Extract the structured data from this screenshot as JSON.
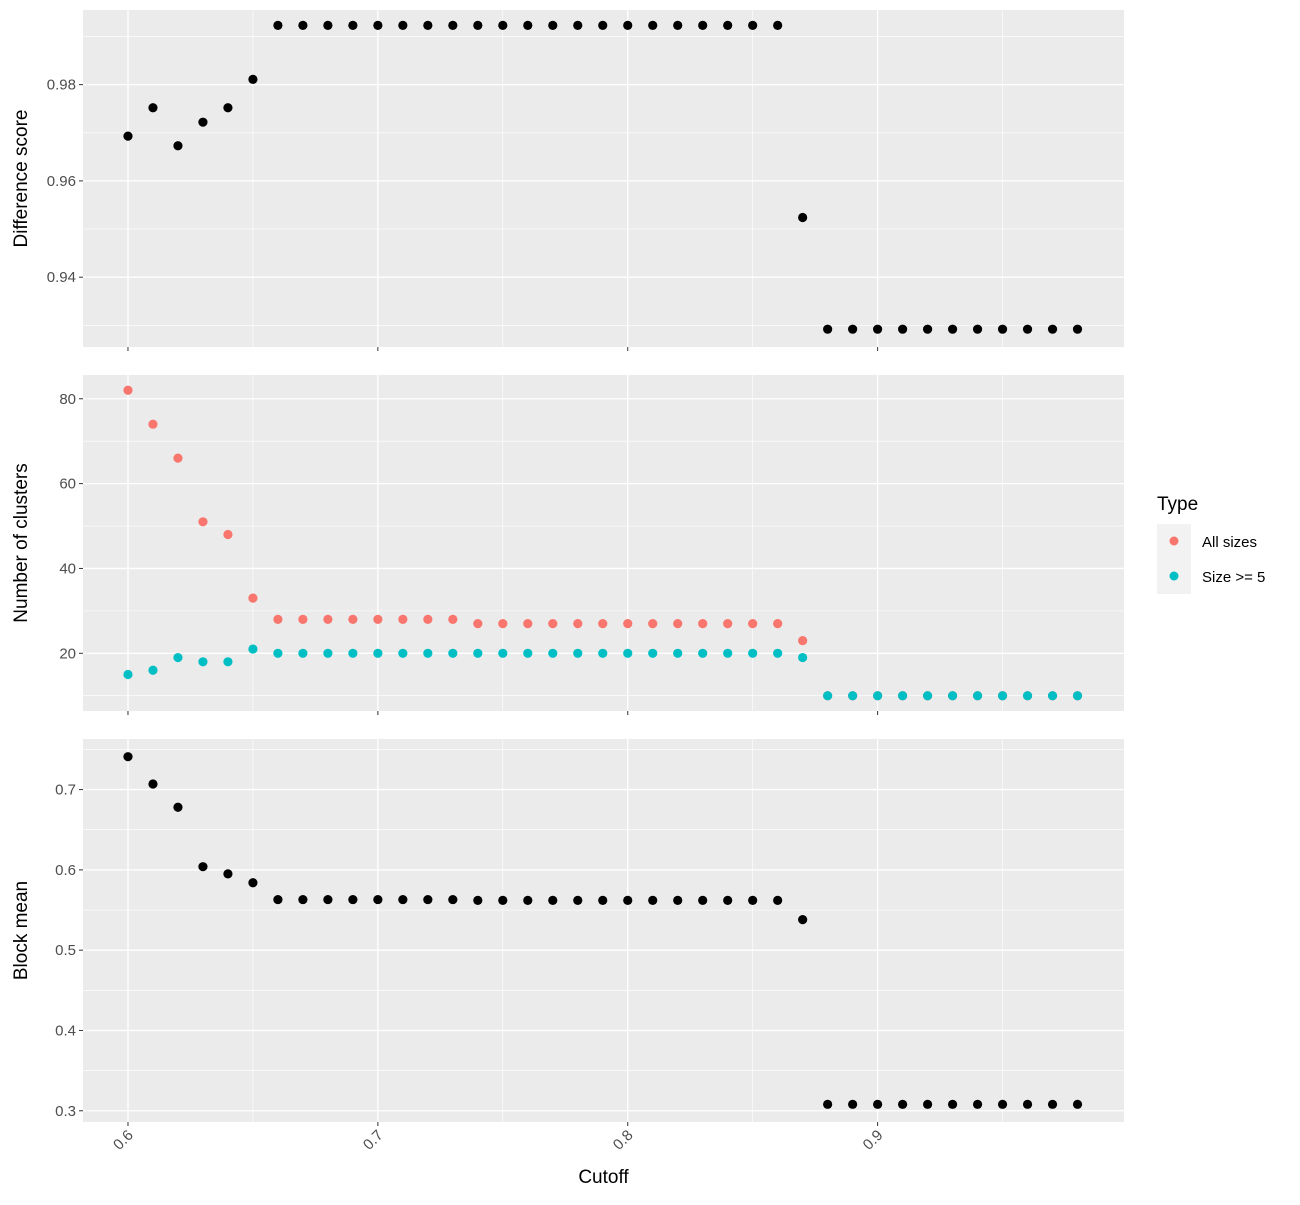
{
  "chart_data": [
    {
      "type": "scatter",
      "ylabel": "Difference score",
      "xlim": [
        0.582,
        0.9986
      ],
      "ylim": [
        0.9255,
        0.9955
      ],
      "x_ticks": [
        0.6,
        0.7,
        0.8,
        0.9
      ],
      "y_ticks": [
        0.94,
        0.96,
        0.98
      ],
      "grid": true,
      "show_x_tick_labels": false,
      "series": [
        {
          "color": "#000000",
          "points": [
            [
              0.6,
              0.9693
            ],
            [
              0.61,
              0.9752
            ],
            [
              0.62,
              0.9673
            ],
            [
              0.63,
              0.9722
            ],
            [
              0.64,
              0.9752
            ],
            [
              0.65,
              0.9811
            ],
            [
              0.66,
              0.9923
            ],
            [
              0.67,
              0.9923
            ],
            [
              0.68,
              0.9923
            ],
            [
              0.69,
              0.9923
            ],
            [
              0.7,
              0.9923
            ],
            [
              0.71,
              0.9923
            ],
            [
              0.72,
              0.9923
            ],
            [
              0.73,
              0.9923
            ],
            [
              0.74,
              0.9923
            ],
            [
              0.75,
              0.9923
            ],
            [
              0.76,
              0.9923
            ],
            [
              0.77,
              0.9923
            ],
            [
              0.78,
              0.9923
            ],
            [
              0.79,
              0.9923
            ],
            [
              0.8,
              0.9923
            ],
            [
              0.81,
              0.9923
            ],
            [
              0.82,
              0.9923
            ],
            [
              0.83,
              0.9923
            ],
            [
              0.84,
              0.9923
            ],
            [
              0.85,
              0.9923
            ],
            [
              0.86,
              0.9923
            ],
            [
              0.87,
              0.9524
            ],
            [
              0.88,
              0.9292
            ],
            [
              0.89,
              0.9292
            ],
            [
              0.9,
              0.9292
            ],
            [
              0.91,
              0.9292
            ],
            [
              0.92,
              0.9292
            ],
            [
              0.93,
              0.9292
            ],
            [
              0.94,
              0.9292
            ],
            [
              0.95,
              0.9292
            ],
            [
              0.96,
              0.9292
            ],
            [
              0.97,
              0.9292
            ],
            [
              0.98,
              0.9292
            ]
          ]
        }
      ]
    },
    {
      "type": "scatter",
      "ylabel": "Number of clusters",
      "xlim": [
        0.582,
        0.9986
      ],
      "ylim": [
        6.4,
        85.6
      ],
      "x_ticks": [
        0.6,
        0.7,
        0.8,
        0.9
      ],
      "y_ticks": [
        20,
        40,
        60,
        80
      ],
      "grid": true,
      "show_x_tick_labels": false,
      "series": [
        {
          "name": "All sizes",
          "color": "#F8766D",
          "points": [
            [
              0.6,
              82
            ],
            [
              0.61,
              74
            ],
            [
              0.62,
              66
            ],
            [
              0.63,
              51
            ],
            [
              0.64,
              48
            ],
            [
              0.65,
              33
            ],
            [
              0.66,
              28
            ],
            [
              0.67,
              28
            ],
            [
              0.68,
              28
            ],
            [
              0.69,
              28
            ],
            [
              0.7,
              28
            ],
            [
              0.71,
              28
            ],
            [
              0.72,
              28
            ],
            [
              0.73,
              28
            ],
            [
              0.74,
              27
            ],
            [
              0.75,
              27
            ],
            [
              0.76,
              27
            ],
            [
              0.77,
              27
            ],
            [
              0.78,
              27
            ],
            [
              0.79,
              27
            ],
            [
              0.8,
              27
            ],
            [
              0.81,
              27
            ],
            [
              0.82,
              27
            ],
            [
              0.83,
              27
            ],
            [
              0.84,
              27
            ],
            [
              0.85,
              27
            ],
            [
              0.86,
              27
            ],
            [
              0.87,
              23
            ],
            [
              0.88,
              10
            ],
            [
              0.89,
              10
            ],
            [
              0.9,
              10
            ],
            [
              0.91,
              10
            ],
            [
              0.92,
              10
            ],
            [
              0.93,
              10
            ],
            [
              0.94,
              10
            ],
            [
              0.95,
              10
            ],
            [
              0.96,
              10
            ],
            [
              0.97,
              10
            ],
            [
              0.98,
              10
            ]
          ]
        },
        {
          "name": "Size >= 5",
          "color": "#00BFC4",
          "points": [
            [
              0.6,
              15
            ],
            [
              0.61,
              16
            ],
            [
              0.62,
              19
            ],
            [
              0.63,
              18
            ],
            [
              0.64,
              18
            ],
            [
              0.65,
              21
            ],
            [
              0.66,
              20
            ],
            [
              0.67,
              20
            ],
            [
              0.68,
              20
            ],
            [
              0.69,
              20
            ],
            [
              0.7,
              20
            ],
            [
              0.71,
              20
            ],
            [
              0.72,
              20
            ],
            [
              0.73,
              20
            ],
            [
              0.74,
              20
            ],
            [
              0.75,
              20
            ],
            [
              0.76,
              20
            ],
            [
              0.77,
              20
            ],
            [
              0.78,
              20
            ],
            [
              0.79,
              20
            ],
            [
              0.8,
              20
            ],
            [
              0.81,
              20
            ],
            [
              0.82,
              20
            ],
            [
              0.83,
              20
            ],
            [
              0.84,
              20
            ],
            [
              0.85,
              20
            ],
            [
              0.86,
              20
            ],
            [
              0.87,
              19
            ],
            [
              0.88,
              10
            ],
            [
              0.89,
              10
            ],
            [
              0.9,
              10
            ],
            [
              0.91,
              10
            ],
            [
              0.92,
              10
            ],
            [
              0.93,
              10
            ],
            [
              0.94,
              10
            ],
            [
              0.95,
              10
            ],
            [
              0.96,
              10
            ],
            [
              0.97,
              10
            ],
            [
              0.98,
              10
            ]
          ]
        }
      ]
    },
    {
      "type": "scatter",
      "ylabel": "Block mean",
      "xlabel": "Cutoff",
      "xlim": [
        0.582,
        0.9986
      ],
      "ylim": [
        0.286,
        0.763
      ],
      "x_ticks": [
        0.6,
        0.7,
        0.8,
        0.9
      ],
      "y_ticks": [
        0.3,
        0.4,
        0.5,
        0.6,
        0.7
      ],
      "grid": true,
      "show_x_tick_labels": true,
      "x_tick_label_rotation": -45,
      "series": [
        {
          "color": "#000000",
          "points": [
            [
              0.6,
              0.741
            ],
            [
              0.61,
              0.707
            ],
            [
              0.62,
              0.678
            ],
            [
              0.63,
              0.604
            ],
            [
              0.64,
              0.595
            ],
            [
              0.65,
              0.584
            ],
            [
              0.66,
              0.563
            ],
            [
              0.67,
              0.563
            ],
            [
              0.68,
              0.563
            ],
            [
              0.69,
              0.563
            ],
            [
              0.7,
              0.563
            ],
            [
              0.71,
              0.563
            ],
            [
              0.72,
              0.563
            ],
            [
              0.73,
              0.563
            ],
            [
              0.74,
              0.562
            ],
            [
              0.75,
              0.562
            ],
            [
              0.76,
              0.562
            ],
            [
              0.77,
              0.562
            ],
            [
              0.78,
              0.562
            ],
            [
              0.79,
              0.562
            ],
            [
              0.8,
              0.562
            ],
            [
              0.81,
              0.562
            ],
            [
              0.82,
              0.562
            ],
            [
              0.83,
              0.562
            ],
            [
              0.84,
              0.562
            ],
            [
              0.85,
              0.562
            ],
            [
              0.86,
              0.562
            ],
            [
              0.87,
              0.538
            ],
            [
              0.88,
              0.308
            ],
            [
              0.89,
              0.308
            ],
            [
              0.9,
              0.308
            ],
            [
              0.91,
              0.308
            ],
            [
              0.92,
              0.308
            ],
            [
              0.93,
              0.308
            ],
            [
              0.94,
              0.308
            ],
            [
              0.95,
              0.308
            ],
            [
              0.96,
              0.308
            ],
            [
              0.97,
              0.308
            ],
            [
              0.98,
              0.308
            ]
          ]
        }
      ]
    }
  ],
  "legend": {
    "title": "Type",
    "placement": "right",
    "items": [
      {
        "label": "All sizes",
        "color": "#F8766D"
      },
      {
        "label": "Size >= 5",
        "color": "#00BFC4"
      }
    ]
  },
  "style": {
    "panel_background": "#EBEBEB",
    "grid_color": "#FFFFFF",
    "tick_color": "#333333"
  }
}
